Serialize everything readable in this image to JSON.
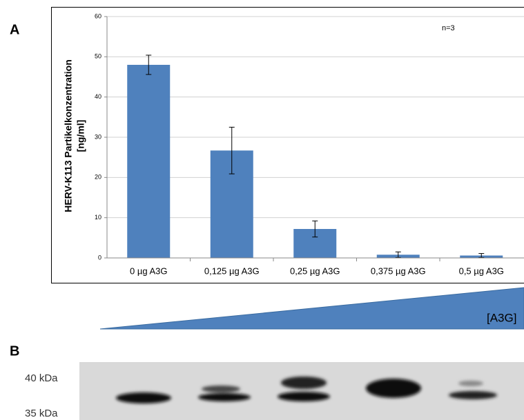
{
  "chart_data": {
    "type": "bar",
    "panel_label": "A",
    "y_label": [
      "HERV-K113 Partikelkonzentration",
      "[ng/ml]"
    ],
    "annotation": "n=3",
    "categories": [
      "0 µg A3G",
      "0,125 µg A3G",
      "0,25 µg A3G",
      "0,375 µg A3G",
      "0,5 µg A3G"
    ],
    "values": [
      48,
      26.7,
      7.2,
      0.8,
      0.6
    ],
    "errors": [
      2.4,
      5.8,
      2.0,
      0.7,
      0.5
    ],
    "color": "#4f81bd",
    "ylim": [
      0,
      60
    ],
    "yticks": [
      0,
      10,
      20,
      30,
      40,
      50,
      60
    ],
    "grid": true,
    "gradient_label": "[A3G]"
  },
  "blot": {
    "panel_label": "B",
    "markers": [
      "40 kDa",
      "35 kDa"
    ]
  }
}
